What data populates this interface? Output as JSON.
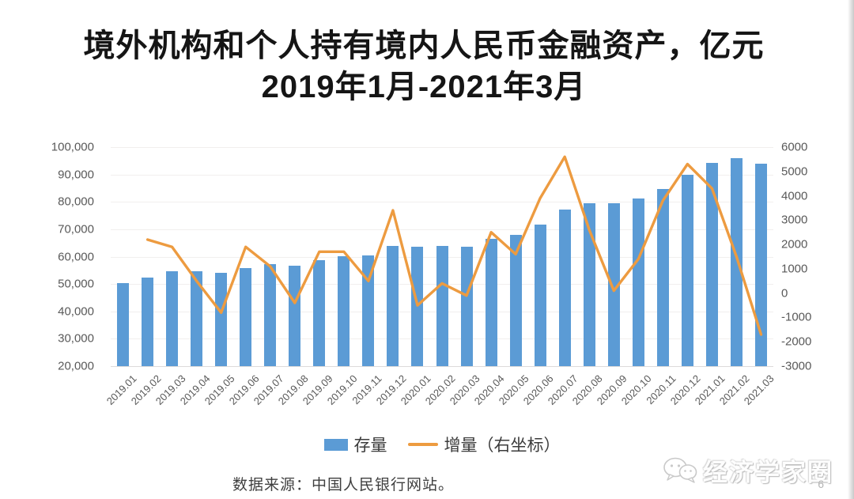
{
  "slide": {
    "title_line1": "境外机构和个人持有境内人民币金融资产，亿元",
    "title_line2": "2019年1月-2021年3月",
    "source_note": "数据来源：中国人民银行网站。",
    "page_number": "6",
    "watermark_text": "经济学家圈"
  },
  "chart_data": {
    "type": "combo-bar-line",
    "title": "境外机构和个人持有境内人民币金融资产，亿元",
    "subtitle": "2019年1月-2021年3月",
    "unit": "亿元",
    "grid": "horizontal",
    "legend_position": "bottom",
    "categories": [
      "2019.01",
      "2019.02",
      "2019.03",
      "2019.04",
      "2019.05",
      "2019.06",
      "2019.07",
      "2019.08",
      "2019.09",
      "2019.10",
      "2019.11",
      "2019.12",
      "2020.01",
      "2020.02",
      "2020.03",
      "2020.04",
      "2020.05",
      "2020.06",
      "2020.07",
      "2020.08",
      "2020.09",
      "2020.10",
      "2020.11",
      "2020.12",
      "2021.01",
      "2021.02",
      "2021.03"
    ],
    "series": [
      {
        "name": "存量",
        "type": "bar",
        "axis": "left",
        "color": "#5B9BD5",
        "values": [
          50300,
          52400,
          54600,
          54800,
          54000,
          55800,
          57200,
          56800,
          58600,
          60200,
          60500,
          63900,
          63500,
          63900,
          63600,
          66600,
          67900,
          71700,
          77300,
          79500,
          79600,
          81200,
          84700,
          89900,
          94200,
          95900,
          93800
        ]
      },
      {
        "name": "增量（右坐标）",
        "type": "line",
        "axis": "right",
        "color": "#ED9B40",
        "values": [
          null,
          2200,
          1900,
          500,
          -800,
          1900,
          1100,
          -400,
          1700,
          1700,
          500,
          3400,
          -500,
          400,
          -100,
          2500,
          1600,
          3900,
          5600,
          2600,
          100,
          1400,
          3800,
          5300,
          4300,
          1500,
          -1700
        ]
      }
    ],
    "left_axis": {
      "min": 20000,
      "max": 100000,
      "step": 10000,
      "tick_labels": [
        "100,000",
        "90,000",
        "80,000",
        "70,000",
        "60,000",
        "50,000",
        "40,000",
        "30,000",
        "20,000"
      ]
    },
    "right_axis": {
      "min": -3000,
      "max": 6000,
      "step": 1000,
      "tick_labels": [
        "6000",
        "5000",
        "4000",
        "3000",
        "2000",
        "1000",
        "0",
        "-1000",
        "-2000",
        "-3000"
      ]
    }
  }
}
